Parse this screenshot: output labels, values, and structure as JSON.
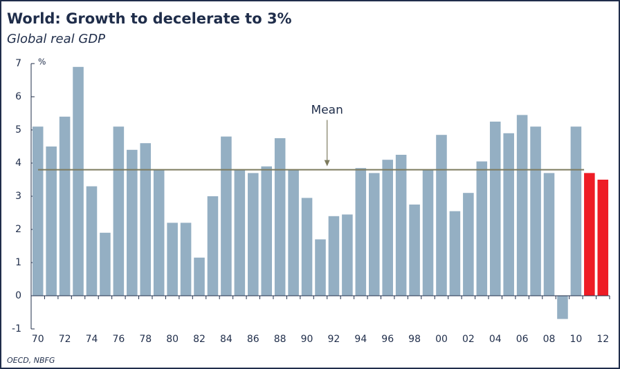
{
  "chart_data": {
    "type": "bar",
    "title": "World: Growth to decelerate to 3%",
    "subtitle": "Global real GDP",
    "y_unit": "%",
    "source": "OECD, NBFG",
    "categories": [
      "70",
      null,
      "72",
      null,
      "74",
      null,
      "76",
      null,
      "78",
      null,
      "80",
      null,
      "82",
      null,
      "84",
      null,
      "86",
      null,
      "88",
      null,
      "90",
      null,
      "92",
      null,
      "94",
      null,
      "96",
      null,
      "98",
      null,
      "00",
      null,
      "02",
      null,
      "04",
      null,
      "06",
      null,
      "08",
      null,
      "10",
      null,
      "12"
    ],
    "values": [
      5.1,
      4.5,
      5.4,
      6.9,
      3.3,
      1.9,
      5.1,
      4.4,
      4.6,
      3.8,
      2.2,
      2.2,
      1.15,
      3.0,
      4.8,
      3.8,
      3.7,
      3.9,
      4.75,
      3.8,
      2.95,
      1.7,
      2.4,
      2.45,
      3.85,
      3.7,
      4.1,
      4.25,
      2.75,
      3.8,
      4.85,
      2.55,
      3.1,
      4.05,
      5.25,
      4.9,
      5.45,
      5.1,
      3.7,
      -0.7,
      5.1,
      3.7,
      3.5
    ],
    "colors": [
      "#94afc3",
      "#94afc3",
      "#94afc3",
      "#94afc3",
      "#94afc3",
      "#94afc3",
      "#94afc3",
      "#94afc3",
      "#94afc3",
      "#94afc3",
      "#94afc3",
      "#94afc3",
      "#94afc3",
      "#94afc3",
      "#94afc3",
      "#94afc3",
      "#94afc3",
      "#94afc3",
      "#94afc3",
      "#94afc3",
      "#94afc3",
      "#94afc3",
      "#94afc3",
      "#94afc3",
      "#94afc3",
      "#94afc3",
      "#94afc3",
      "#94afc3",
      "#94afc3",
      "#94afc3",
      "#94afc3",
      "#94afc3",
      "#94afc3",
      "#94afc3",
      "#94afc3",
      "#94afc3",
      "#94afc3",
      "#94afc3",
      "#94afc3",
      "#94afc3",
      "#94afc3",
      "#ee1c25",
      "#ee1c25"
    ],
    "mean": 3.8,
    "mean_label": "Mean",
    "mean_color": "#7d7b5e",
    "ylim": [
      -1,
      7
    ],
    "yticks": [
      -1,
      0,
      1,
      2,
      3,
      4,
      5,
      6,
      7
    ]
  }
}
